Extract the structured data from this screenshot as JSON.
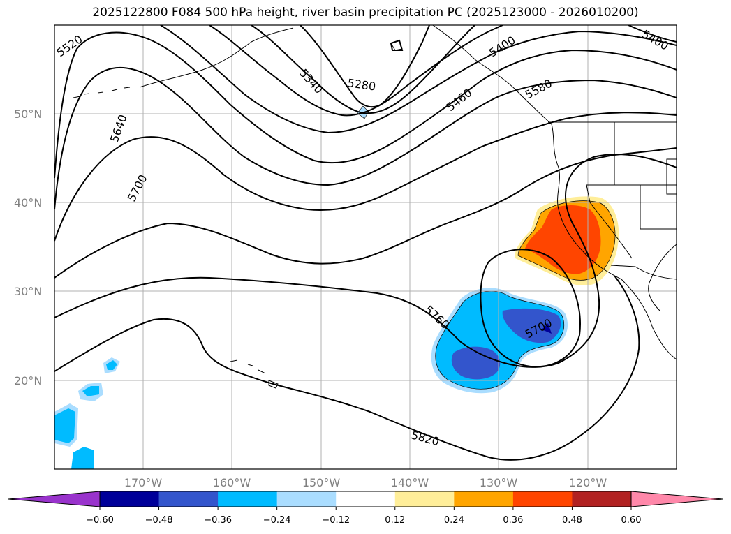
{
  "title": "2025122800 F084 500 hPa height, river basin precipitation PC (2025123000 - 2026010200)",
  "lat_labels": [
    "50°N",
    "40°N",
    "30°N",
    "20°N"
  ],
  "lon_labels": [
    "170°W",
    "160°W",
    "150°W",
    "140°W",
    "130°W",
    "120°W"
  ],
  "contour_labels": [
    "5520",
    "5640",
    "5700",
    "5340",
    "5280",
    "5400",
    "5460",
    "5580",
    "5400",
    "5760",
    "5700",
    "5820"
  ],
  "colorbar": {
    "ticks": [
      "−0.60",
      "−0.48",
      "−0.36",
      "−0.24",
      "−0.12",
      "0.12",
      "0.24",
      "0.36",
      "0.48",
      "0.60"
    ],
    "colors": [
      "#9933cc",
      "#000099",
      "#3355cc",
      "#00bbff",
      "#aaddff",
      "#ffffff",
      "#ffee99",
      "#ffa500",
      "#ff4500",
      "#b22222",
      "#ff88aa"
    ]
  }
}
